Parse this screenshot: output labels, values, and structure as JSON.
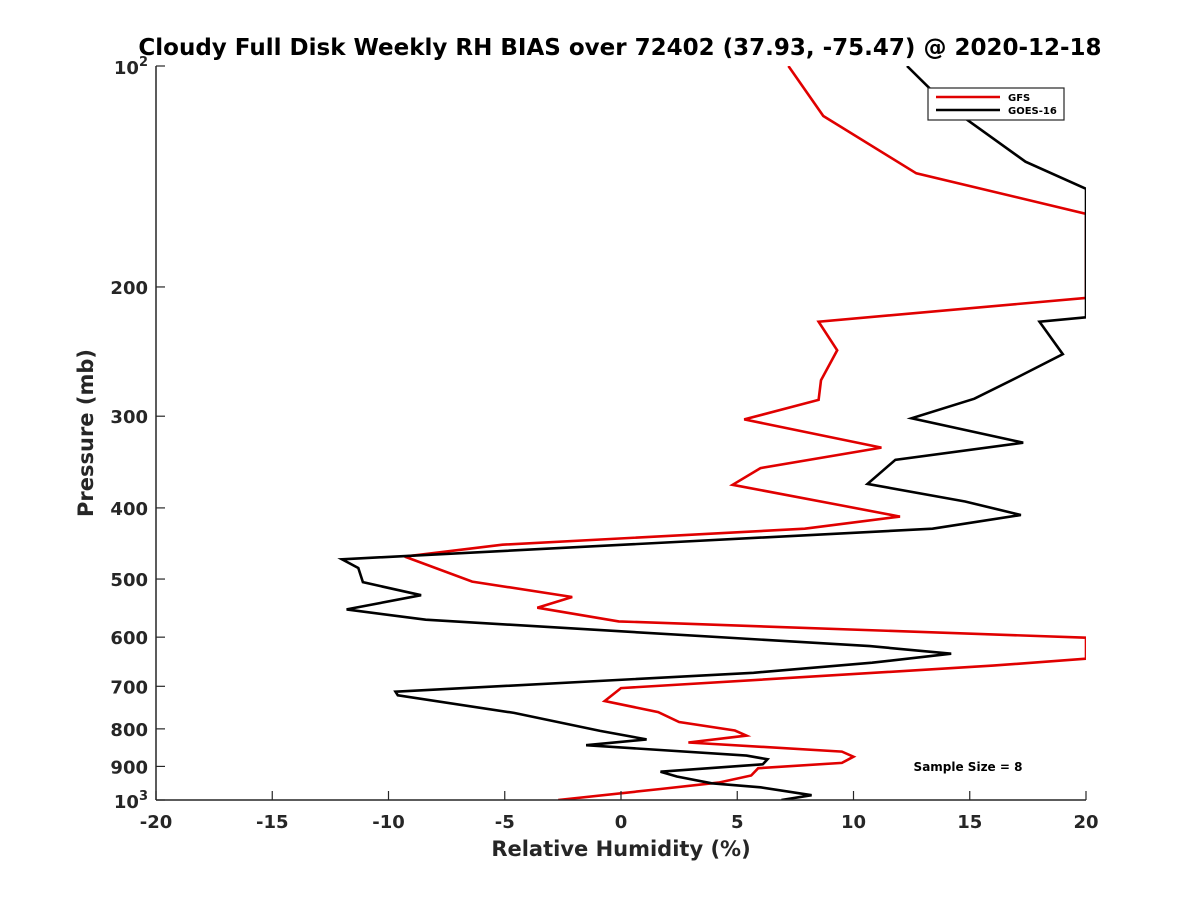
{
  "chart_data": {
    "type": "line",
    "title": "Cloudy Full Disk Weekly RH BIAS over 72402 (37.93, -75.47) @ 2020-12-18",
    "xlabel": "Relative Humidity (%)",
    "ylabel": "Pressure (mb)",
    "xlim": [
      -20,
      20
    ],
    "ylim": [
      100,
      1000
    ],
    "y_scale": "log",
    "y_reversed": true,
    "grid": false,
    "legend_position": "top-right",
    "x_ticks": [
      "-20",
      "-15",
      "-10",
      "-5",
      "0",
      "5",
      "10",
      "15",
      "20"
    ],
    "y_ticks": [
      {
        "value": 100,
        "base": "10",
        "exp": "2"
      },
      {
        "value": 200,
        "label": "200"
      },
      {
        "value": 300,
        "label": "300"
      },
      {
        "value": 400,
        "label": "400"
      },
      {
        "value": 500,
        "label": "500"
      },
      {
        "value": 600,
        "label": "600"
      },
      {
        "value": 700,
        "label": "700"
      },
      {
        "value": 800,
        "label": "800"
      },
      {
        "value": 900,
        "label": "900"
      },
      {
        "value": 1000,
        "base": "10",
        "exp": "3"
      }
    ],
    "annotation": "Sample Size = 8",
    "series": [
      {
        "name": "GFS",
        "color": "#e00000",
        "points": [
          {
            "x": 7.2,
            "p": 100
          },
          {
            "x": 8.7,
            "p": 117
          },
          {
            "x": 12.7,
            "p": 140
          },
          {
            "x": 20,
            "p": 159
          },
          {
            "x": 20,
            "p": 207
          },
          {
            "x": 8.5,
            "p": 223
          },
          {
            "x": 9.3,
            "p": 244
          },
          {
            "x": 8.6,
            "p": 268
          },
          {
            "x": 8.5,
            "p": 285
          },
          {
            "x": 5.3,
            "p": 303
          },
          {
            "x": 11.2,
            "p": 331
          },
          {
            "x": 6.0,
            "p": 353
          },
          {
            "x": 4.8,
            "p": 372
          },
          {
            "x": 9.5,
            "p": 397
          },
          {
            "x": 12.0,
            "p": 411
          },
          {
            "x": 7.9,
            "p": 427
          },
          {
            "x": -5.1,
            "p": 449
          },
          {
            "x": -9.3,
            "p": 466
          },
          {
            "x": -6.4,
            "p": 504
          },
          {
            "x": -2.1,
            "p": 529
          },
          {
            "x": -3.6,
            "p": 547
          },
          {
            "x": -0.1,
            "p": 571
          },
          {
            "x": 20,
            "p": 601
          },
          {
            "x": 20,
            "p": 642
          },
          {
            "x": 16.0,
            "p": 656
          },
          {
            "x": 0.0,
            "p": 704
          },
          {
            "x": -0.7,
            "p": 733
          },
          {
            "x": 1.6,
            "p": 759
          },
          {
            "x": 2.5,
            "p": 783
          },
          {
            "x": 4.9,
            "p": 804
          },
          {
            "x": 5.4,
            "p": 817
          },
          {
            "x": 2.9,
            "p": 835
          },
          {
            "x": 9.5,
            "p": 859
          },
          {
            "x": 10.0,
            "p": 873
          },
          {
            "x": 9.5,
            "p": 890
          },
          {
            "x": 5.9,
            "p": 905
          },
          {
            "x": 5.6,
            "p": 926
          },
          {
            "x": 4.2,
            "p": 947
          },
          {
            "x": 1.7,
            "p": 966
          },
          {
            "x": -2.7,
            "p": 1000
          }
        ]
      },
      {
        "name": "GOES-16",
        "color": "#000000",
        "points": [
          {
            "x": 12.3,
            "p": 100
          },
          {
            "x": 14.0,
            "p": 113
          },
          {
            "x": 17.4,
            "p": 135
          },
          {
            "x": 20,
            "p": 147
          },
          {
            "x": 20,
            "p": 220
          },
          {
            "x": 18.0,
            "p": 223
          },
          {
            "x": 19.0,
            "p": 247
          },
          {
            "x": 17.0,
            "p": 266
          },
          {
            "x": 15.2,
            "p": 284
          },
          {
            "x": 12.5,
            "p": 302
          },
          {
            "x": 17.3,
            "p": 326
          },
          {
            "x": 11.8,
            "p": 344
          },
          {
            "x": 10.6,
            "p": 371
          },
          {
            "x": 14.8,
            "p": 392
          },
          {
            "x": 17.2,
            "p": 409
          },
          {
            "x": 13.4,
            "p": 427
          },
          {
            "x": -12.0,
            "p": 470
          },
          {
            "x": -11.3,
            "p": 483
          },
          {
            "x": -11.1,
            "p": 505
          },
          {
            "x": -8.6,
            "p": 526
          },
          {
            "x": -11.8,
            "p": 550
          },
          {
            "x": -8.4,
            "p": 568
          },
          {
            "x": 10.7,
            "p": 617
          },
          {
            "x": 14.2,
            "p": 632
          },
          {
            "x": 10.8,
            "p": 650
          },
          {
            "x": 5.7,
            "p": 671
          },
          {
            "x": -9.7,
            "p": 712
          },
          {
            "x": -9.6,
            "p": 720
          },
          {
            "x": -4.6,
            "p": 761
          },
          {
            "x": -0.9,
            "p": 805
          },
          {
            "x": 1.1,
            "p": 827
          },
          {
            "x": -1.5,
            "p": 842
          },
          {
            "x": 5.4,
            "p": 870
          },
          {
            "x": 6.3,
            "p": 880
          },
          {
            "x": 6.1,
            "p": 894
          },
          {
            "x": 1.7,
            "p": 915
          },
          {
            "x": 2.4,
            "p": 929
          },
          {
            "x": 3.9,
            "p": 949
          },
          {
            "x": 6.0,
            "p": 961
          },
          {
            "x": 8.2,
            "p": 985
          },
          {
            "x": 6.9,
            "p": 1000
          }
        ]
      }
    ]
  }
}
